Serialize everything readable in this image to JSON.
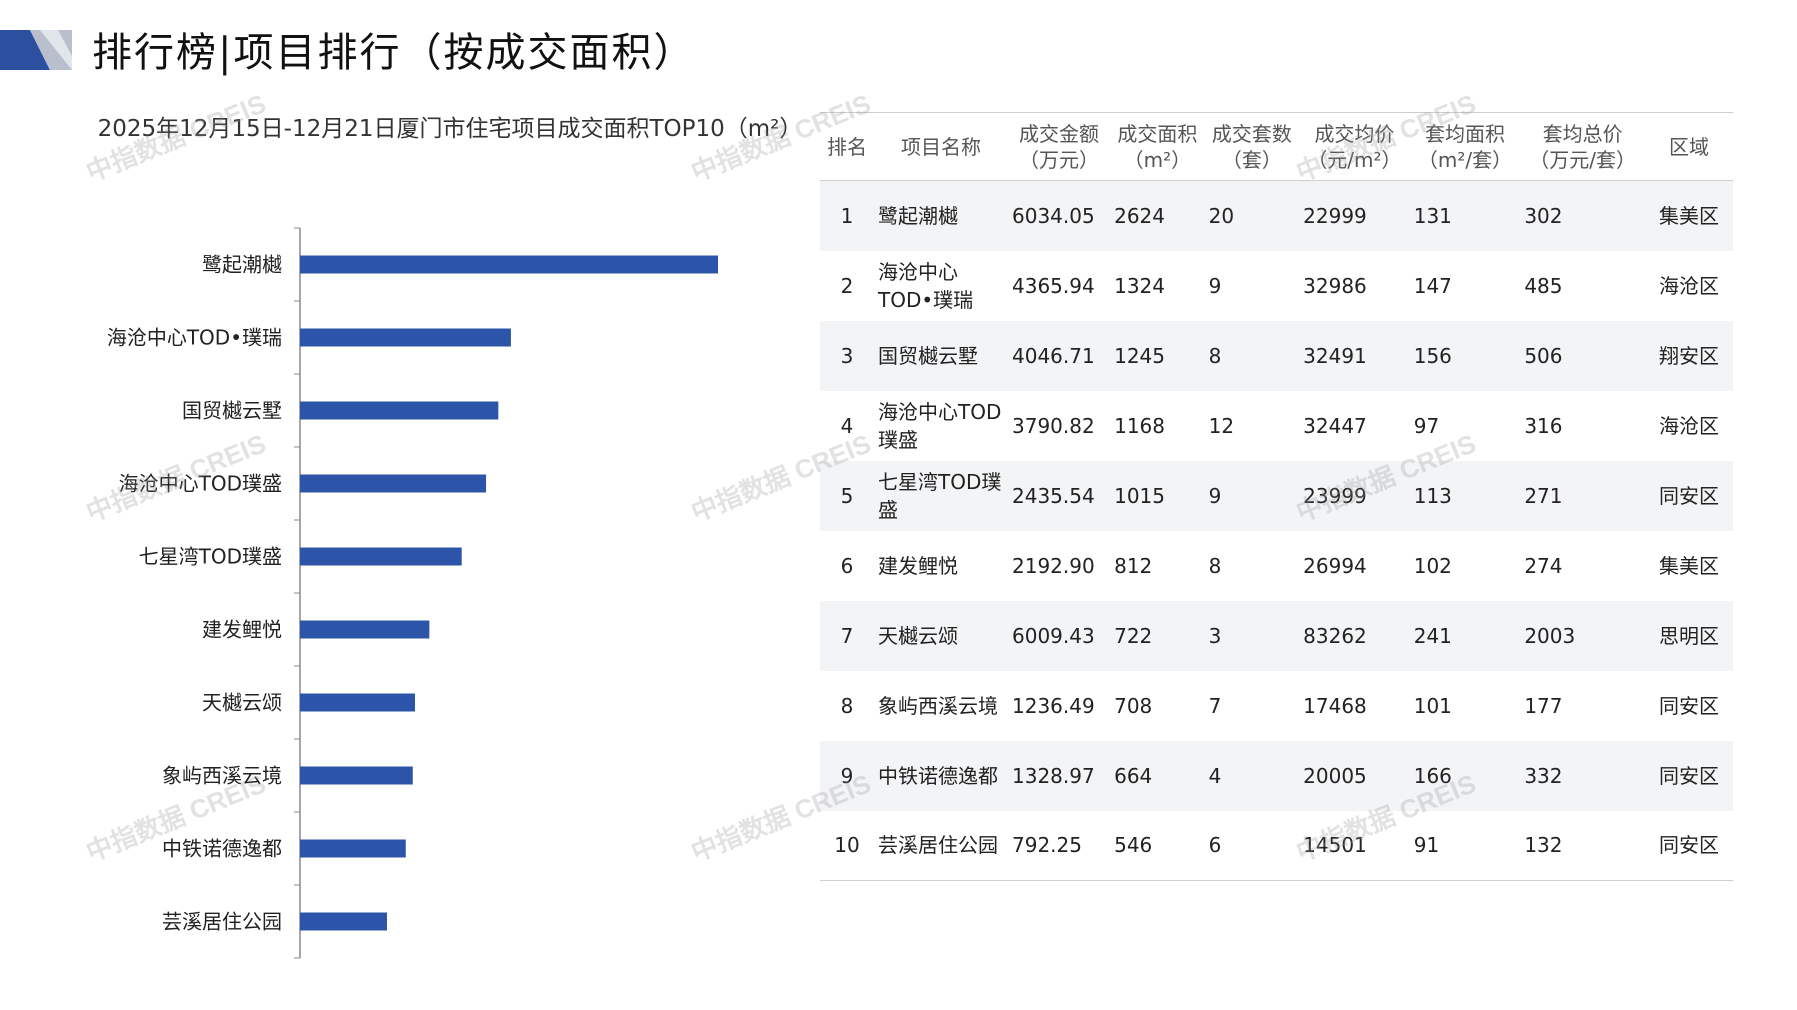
{
  "header": {
    "title": "排行榜|项目排行（按成交面积）"
  },
  "watermark_text": "中指数据 CREIS",
  "chart_data": {
    "type": "bar",
    "orientation": "horizontal",
    "title": "2025年12月15日-12月21日厦门市住宅项目成交面积TOP10（m²）",
    "categories": [
      "鹭起潮樾",
      "海沧中心TOD•璞瑞",
      "国贸樾云墅",
      "海沧中心TOD璞盛",
      "七星湾TOD璞盛",
      "建发鲤悦",
      "天樾云颂",
      "象屿西溪云境",
      "中铁诺德逸都",
      "芸溪居住公园"
    ],
    "values": [
      2624,
      1324,
      1245,
      1168,
      1015,
      812,
      722,
      708,
      664,
      546
    ],
    "bar_color": "#2c54a8",
    "axis_color": "#888888"
  },
  "table": {
    "headers": [
      {
        "line1": "排名",
        "line2": ""
      },
      {
        "line1": "项目名称",
        "line2": ""
      },
      {
        "line1": "成交金额",
        "line2": "（万元）"
      },
      {
        "line1": "成交面积",
        "line2": "（m²）"
      },
      {
        "line1": "成交套数",
        "line2": "（套）"
      },
      {
        "line1": "成交均价",
        "line2": "（元/m²）"
      },
      {
        "line1": "套均面积",
        "line2": "（m²/套）"
      },
      {
        "line1": "套均总价",
        "line2": "（万元/套）"
      },
      {
        "line1": "区域",
        "line2": ""
      }
    ],
    "rows": [
      {
        "rank": "1",
        "name": "鹭起潮樾",
        "amount": "6034.05",
        "area": "2624",
        "units": "20",
        "avg_price": "22999",
        "avg_area": "131",
        "avg_total": "302",
        "region": "集美区"
      },
      {
        "rank": "2",
        "name": "海沧中心TOD•璞瑞",
        "amount": "4365.94",
        "area": "1324",
        "units": "9",
        "avg_price": "32986",
        "avg_area": "147",
        "avg_total": "485",
        "region": "海沧区"
      },
      {
        "rank": "3",
        "name": "国贸樾云墅",
        "amount": "4046.71",
        "area": "1245",
        "units": "8",
        "avg_price": "32491",
        "avg_area": "156",
        "avg_total": "506",
        "region": "翔安区"
      },
      {
        "rank": "4",
        "name": "海沧中心TOD璞盛",
        "amount": "3790.82",
        "area": "1168",
        "units": "12",
        "avg_price": "32447",
        "avg_area": "97",
        "avg_total": "316",
        "region": "海沧区"
      },
      {
        "rank": "5",
        "name": "七星湾TOD璞盛",
        "amount": "2435.54",
        "area": "1015",
        "units": "9",
        "avg_price": "23999",
        "avg_area": "113",
        "avg_total": "271",
        "region": "同安区"
      },
      {
        "rank": "6",
        "name": "建发鲤悦",
        "amount": "2192.90",
        "area": "812",
        "units": "8",
        "avg_price": "26994",
        "avg_area": "102",
        "avg_total": "274",
        "region": "集美区"
      },
      {
        "rank": "7",
        "name": "天樾云颂",
        "amount": "6009.43",
        "area": "722",
        "units": "3",
        "avg_price": "83262",
        "avg_area": "241",
        "avg_total": "2003",
        "region": "思明区"
      },
      {
        "rank": "8",
        "name": "象屿西溪云境",
        "amount": "1236.49",
        "area": "708",
        "units": "7",
        "avg_price": "17468",
        "avg_area": "101",
        "avg_total": "177",
        "region": "同安区"
      },
      {
        "rank": "9",
        "name": "中铁诺德逸都",
        "amount": "1328.97",
        "area": "664",
        "units": "4",
        "avg_price": "20005",
        "avg_area": "166",
        "avg_total": "332",
        "region": "同安区"
      },
      {
        "rank": "10",
        "name": "芸溪居住公园",
        "amount": "792.25",
        "area": "546",
        "units": "6",
        "avg_price": "14501",
        "avg_area": "91",
        "avg_total": "132",
        "region": "同安区"
      }
    ]
  }
}
